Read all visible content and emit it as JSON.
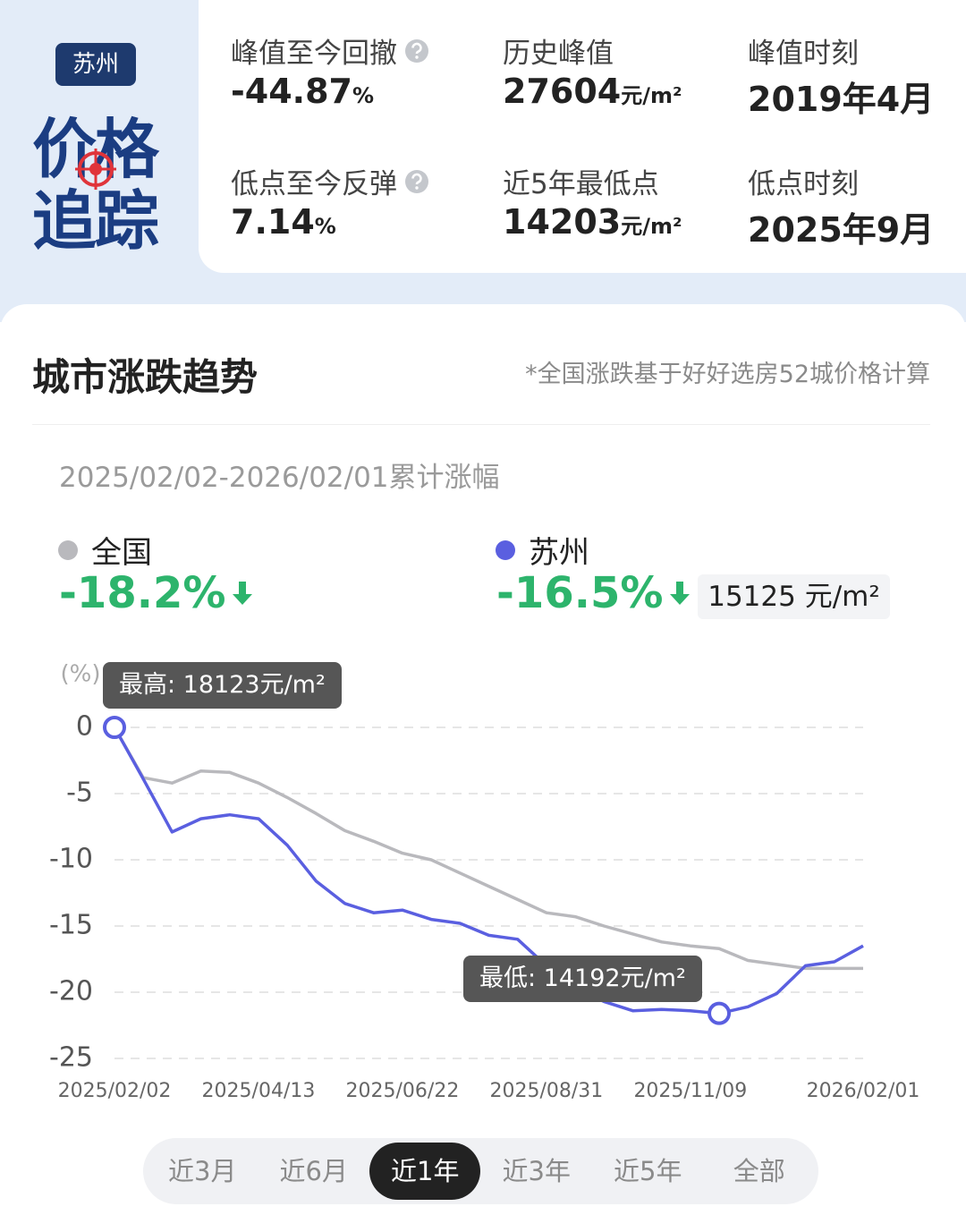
{
  "header": {
    "city": "苏州",
    "logo_line1": "价格",
    "logo_line2": "追踪",
    "stats": [
      {
        "label": "峰值至今回撤",
        "value": "-44.87",
        "unit": "%"
      },
      {
        "label": "历史峰值",
        "value": "27604",
        "unit": "元/m²"
      },
      {
        "label": "峰值时刻",
        "value": "2019年4月"
      },
      {
        "label": "低点至今反弹",
        "value": "7.14",
        "unit": "%"
      },
      {
        "label": "近5年最低点",
        "value": "14203",
        "unit": "元/m²"
      },
      {
        "label": "低点时刻",
        "value": "2025年9月"
      }
    ]
  },
  "section": {
    "title": "城市涨跌趋势",
    "note": "*全国涨跌基于好好选房52城价格计算",
    "range_label": "2025/02/02-2026/02/01累计涨幅"
  },
  "chart_data": {
    "type": "line",
    "y_unit_label": "(%)",
    "x": [
      "2025/02/02",
      "2025/02/16",
      "2025/03/02",
      "2025/03/16",
      "2025/03/30",
      "2025/04/13",
      "2025/04/27",
      "2025/05/11",
      "2025/05/25",
      "2025/06/08",
      "2025/06/22",
      "2025/07/06",
      "2025/07/20",
      "2025/08/03",
      "2025/08/17",
      "2025/08/31",
      "2025/09/14",
      "2025/09/28",
      "2025/10/12",
      "2025/10/26",
      "2025/11/09",
      "2025/11/23",
      "2025/12/07",
      "2025/12/21",
      "2026/01/04",
      "2026/01/18",
      "2026/02/01"
    ],
    "xticks": [
      "2025/02/02",
      "2025/04/13",
      "2025/06/22",
      "2025/08/31",
      "2025/11/09",
      "2026/02/01"
    ],
    "ylim": [
      -25,
      0
    ],
    "yticks": [
      0,
      -5,
      -10,
      -15,
      -20,
      -25
    ],
    "grid": true,
    "annotations": [
      "最高: 18123元/m²",
      "最低: 14192元/m²"
    ],
    "series": [
      {
        "name": "全国",
        "color": "#b9b9bd",
        "change": "-18.2%",
        "values": [
          0,
          -3.8,
          -4.2,
          -3.3,
          -3.4,
          -4.2,
          -5.3,
          -6.5,
          -7.8,
          -8.6,
          -9.5,
          -10,
          -11,
          -12,
          -13,
          -14,
          -14.3,
          -15,
          -15.6,
          -16.2,
          -16.5,
          -16.7,
          -17.6,
          -17.9,
          -18.2,
          -18.2,
          -18.2
        ]
      },
      {
        "name": "苏州",
        "color": "#5a5fe0",
        "change": "-16.5%",
        "price": "15125 元/m²",
        "values": [
          0,
          -3.9,
          -7.9,
          -6.9,
          -6.6,
          -6.9,
          -8.9,
          -11.6,
          -13.3,
          -14,
          -13.8,
          -14.5,
          -14.8,
          -15.7,
          -16,
          -18,
          -19.7,
          -20.7,
          -21.4,
          -21.3,
          -21.4,
          -21.6,
          -21.1,
          -20.1,
          -18,
          -17.7,
          -16.5
        ]
      }
    ]
  },
  "tabs": {
    "items": [
      "近3月",
      "近6月",
      "近1年",
      "近3年",
      "近5年",
      "全部"
    ],
    "active": 2
  }
}
